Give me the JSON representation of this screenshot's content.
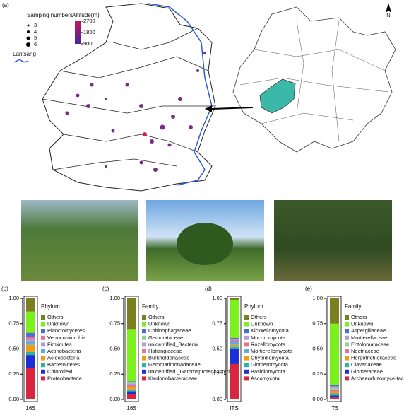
{
  "map": {
    "label": "(a)",
    "size_legend_title": "Samping numbers",
    "sizes": [
      3,
      4,
      5,
      6
    ],
    "altitude_title": "Altitude(m)",
    "altitude_ticks": [
      2700,
      1800,
      900
    ],
    "river": "Lantsang",
    "north": "N"
  },
  "chart_data": [
    {
      "type": "bar",
      "stacked": true,
      "panel": "(b)",
      "categories": [
        "16S"
      ],
      "legend_title": "Phylum",
      "ylim": [
        0,
        1
      ],
      "yticks": [
        {
          "value": 0,
          "label": "0.00"
        },
        0.25,
        {
          "value": 0.5,
          "label": "0.50"
        },
        0.75,
        {
          "value": 1,
          "label": "1.00"
        }
      ],
      "series": [
        {
          "name": "Proteobacteria",
          "color": "#d7263d",
          "values": [
            0.31
          ]
        },
        {
          "name": "Chloroflexi",
          "color": "#1f2fd6",
          "values": [
            0.13
          ]
        },
        {
          "name": "Bacteroidetes",
          "color": "#2bb3a3",
          "values": [
            0.03
          ]
        },
        {
          "name": "Acidobacteria",
          "color": "#f39c12",
          "values": [
            0.07
          ]
        },
        {
          "name": "Actinobacteria",
          "color": "#5dade2",
          "values": [
            0.03
          ]
        },
        {
          "name": "Firmicutes",
          "color": "#b39ddb",
          "values": [
            0.02
          ]
        },
        {
          "name": "Verrucomicrobia",
          "color": "#e57394",
          "values": [
            0.03
          ]
        },
        {
          "name": "Planctomycetes",
          "color": "#4a6fd1",
          "values": [
            0.04
          ]
        },
        {
          "name": "Unknown",
          "color": "#7cf01c",
          "values": [
            0.21
          ]
        },
        {
          "name": "Others",
          "color": "#7c7f1f",
          "values": [
            0.13
          ]
        }
      ]
    },
    {
      "type": "bar",
      "stacked": true,
      "panel": "(c)",
      "categories": [
        "16S"
      ],
      "legend_title": "Family",
      "ylim": [
        0,
        1
      ],
      "yticks": [
        {
          "value": 0,
          "label": "0.00"
        },
        0.25,
        {
          "value": 0.5,
          "label": "0.50"
        },
        0.75,
        {
          "value": 1,
          "label": "1.00"
        }
      ],
      "series": [
        {
          "name": "Ktedonobacteraceae",
          "color": "#d7263d",
          "values": [
            0.05
          ]
        },
        {
          "name": "unidentified _Gammaproteobacteria",
          "color": "#1f2fd6",
          "values": [
            0.03
          ]
        },
        {
          "name": "Gemmatimonadaceae",
          "color": "#2bb3a3",
          "values": [
            0.02
          ]
        },
        {
          "name": "Burkholderiaceae",
          "color": "#f39c12",
          "values": [
            0.02
          ]
        },
        {
          "name": "Haliangiaceae",
          "color": "#e57394",
          "values": [
            0.02
          ]
        },
        {
          "name": "unidentified_Bacteria",
          "color": "#b39ddb",
          "values": [
            0.02
          ]
        },
        {
          "name": "Gemmataceae",
          "color": "#8fd18f",
          "values": [
            0.01
          ]
        },
        {
          "name": "Chitinophagaceae",
          "color": "#4a6fd1",
          "values": [
            0.01
          ]
        },
        {
          "name": "Unknown",
          "color": "#7cf01c",
          "values": [
            0.51
          ]
        },
        {
          "name": "Others",
          "color": "#7c7f1f",
          "values": [
            0.31
          ]
        }
      ]
    },
    {
      "type": "bar",
      "stacked": true,
      "panel": "(d)",
      "categories": [
        "ITS"
      ],
      "legend_title": "Phylum",
      "ylim": [
        0,
        1
      ],
      "yticks": [
        {
          "value": 0,
          "label": "0.00"
        },
        0.25,
        {
          "value": 0.5,
          "label": "0.50"
        },
        0.75,
        {
          "value": 1,
          "label": "1.00"
        }
      ],
      "series": [
        {
          "name": "Ascomycota",
          "color": "#d7263d",
          "values": [
            0.35
          ]
        },
        {
          "name": "Basidiomycota",
          "color": "#1f2fd6",
          "values": [
            0.15
          ]
        },
        {
          "name": "Glomeromycota",
          "color": "#2bb3a3",
          "values": [
            0.02
          ]
        },
        {
          "name": "Chytridiomycota",
          "color": "#f39c12",
          "values": [
            0.02
          ]
        },
        {
          "name": "Mortierellomycota",
          "color": "#5dade2",
          "values": [
            0.03
          ]
        },
        {
          "name": "Rozellomycota",
          "color": "#e57394",
          "values": [
            0.02
          ]
        },
        {
          "name": "Mucoromycota",
          "color": "#b39ddb",
          "values": [
            0.01
          ]
        },
        {
          "name": "Kickxellomycota",
          "color": "#4a6fd1",
          "values": [
            0.01
          ]
        },
        {
          "name": "Unknown",
          "color": "#7cf01c",
          "values": [
            0.37
          ]
        },
        {
          "name": "Others",
          "color": "#7c7f1f",
          "values": [
            0.02
          ]
        }
      ]
    },
    {
      "type": "bar",
      "stacked": true,
      "panel": "(e)",
      "categories": [
        "ITS"
      ],
      "legend_title": "Family",
      "ylim": [
        0,
        1
      ],
      "yticks": [
        {
          "value": 0,
          "label": "0.00"
        },
        0.25,
        {
          "value": 0.5,
          "label": "0.50"
        },
        0.75,
        {
          "value": 1,
          "label": "1.00"
        }
      ],
      "series": [
        {
          "name": "Archaeorhizomyce-taceae",
          "color": "#d7263d",
          "values": [
            0.02
          ]
        },
        {
          "name": "Glomeraceae",
          "color": "#1f2fd6",
          "values": [
            0.02
          ]
        },
        {
          "name": "Clavariaceae",
          "color": "#2bb3a3",
          "values": [
            0.02
          ]
        },
        {
          "name": "Herpotrichiellaceae",
          "color": "#f39c12",
          "values": [
            0.02
          ]
        },
        {
          "name": "Nectriaceae",
          "color": "#e57394",
          "values": [
            0.02
          ]
        },
        {
          "name": "Entolomataceae",
          "color": "#8fd18f",
          "values": [
            0.01
          ]
        },
        {
          "name": "Mortierellaceae",
          "color": "#b39ddb",
          "values": [
            0.02
          ]
        },
        {
          "name": "Aspergillaceae",
          "color": "#4a6fd1",
          "values": [
            0.01
          ]
        },
        {
          "name": "Unknown",
          "color": "#7cf01c",
          "values": [
            0.61
          ]
        },
        {
          "name": "Others",
          "color": "#7c7f1f",
          "values": [
            0.25
          ]
        }
      ]
    }
  ]
}
